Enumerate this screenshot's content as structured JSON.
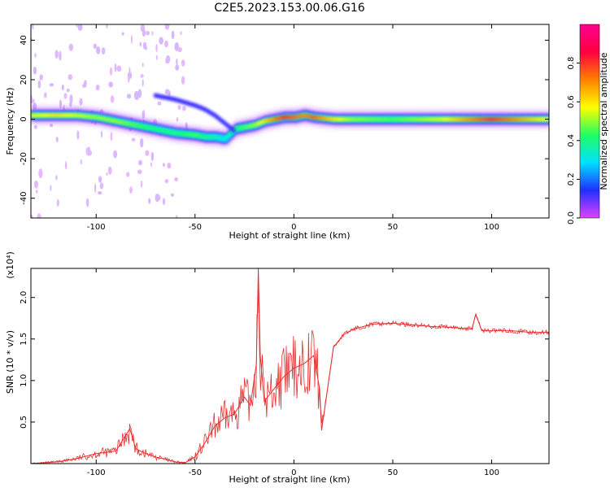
{
  "figure_title": "C2E5.2023.153.00.06.G16",
  "colors": {
    "snr_line": "#e83030",
    "panel_background": "#ffffff",
    "colorbar_stops": [
      "#e040ff",
      "#2030ff",
      "#00e0ff",
      "#20ff60",
      "#ffff00",
      "#ff8000",
      "#ff0040",
      "#ff0090"
    ]
  },
  "chart_data": [
    {
      "type": "heatmap",
      "title": "",
      "xlabel": "Height of straight line (km)",
      "ylabel": "Frequency (Hz)",
      "xlim": [
        -133,
        129
      ],
      "ylim": [
        -50,
        48
      ],
      "xticks": [
        "-100",
        "-50",
        "0",
        "50",
        "100"
      ],
      "xtick_values": [
        -100,
        -50,
        0,
        50,
        100
      ],
      "yticks": [
        "-40",
        "-20",
        "0",
        "20",
        "40"
      ],
      "ytick_values": [
        -40,
        -20,
        0,
        20,
        40
      ],
      "colorbar": {
        "label": "Normalized spectral amplitude",
        "range": [
          0,
          1
        ],
        "ticks": [
          "0.0",
          "0.2",
          "0.4",
          "0.6",
          "0.8"
        ],
        "tick_values": [
          0.0,
          0.2,
          0.4,
          0.6,
          0.8
        ]
      },
      "ridge": {
        "description": "dominant frequency ridge versus height",
        "x": [
          -130,
          -120,
          -110,
          -100,
          -90,
          -80,
          -70,
          -60,
          -50,
          -45,
          -40,
          -35,
          -30,
          -25,
          -20,
          -15,
          -10,
          -5,
          0,
          5,
          10,
          20,
          30,
          50,
          75,
          100,
          129
        ],
        "frequency": [
          2,
          2,
          2,
          1,
          -1,
          -3,
          -5,
          -7,
          -8,
          -9,
          -9,
          -10,
          -5,
          -4,
          -3,
          -1,
          0,
          1,
          1,
          2,
          1,
          0,
          0,
          0,
          0,
          0,
          0
        ],
        "amplitude": [
          0.55,
          0.6,
          0.55,
          0.5,
          0.5,
          0.45,
          0.4,
          0.4,
          0.45,
          0.4,
          0.35,
          0.3,
          0.4,
          0.45,
          0.5,
          0.6,
          0.7,
          0.8,
          0.75,
          0.7,
          0.75,
          0.6,
          0.5,
          0.45,
          0.55,
          0.8,
          0.55
        ]
      },
      "secondary_branch": {
        "x": [
          -70,
          -60,
          -50,
          -45,
          -40,
          -35,
          -30
        ],
        "frequency": [
          12,
          10,
          7,
          5,
          2,
          -2,
          -6
        ]
      }
    },
    {
      "type": "line",
      "title": "",
      "xlabel": "Height of straight line (km)",
      "ylabel": "SNR (10 * v/v)",
      "scale_label": "(x10⁴)",
      "xlim": [
        -133,
        129
      ],
      "ylim": [
        0,
        2.35
      ],
      "xticks": [
        "-100",
        "-50",
        "0",
        "50",
        "100"
      ],
      "xtick_values": [
        -100,
        -50,
        0,
        50,
        100
      ],
      "yticks": [
        "0.5",
        "1.0",
        "1.5",
        "2.0"
      ],
      "ytick_values": [
        0.5,
        1.0,
        1.5,
        2.0
      ],
      "series": [
        {
          "name": "SNR",
          "x": [
            -133,
            -120,
            -110,
            -100,
            -90,
            -83,
            -80,
            -75,
            -70,
            -60,
            -55,
            -50,
            -45,
            -40,
            -35,
            -30,
            -25,
            -22,
            -19,
            -18,
            -17,
            -15,
            -10,
            -5,
            0,
            5,
            10,
            13,
            14,
            20,
            25,
            30,
            40,
            50,
            60,
            70,
            80,
            90,
            92,
            95,
            100,
            110,
            120,
            129
          ],
          "y": [
            0.0,
            0.02,
            0.06,
            0.12,
            0.15,
            0.42,
            0.18,
            0.12,
            0.08,
            0.02,
            0.01,
            0.08,
            0.25,
            0.45,
            0.55,
            0.6,
            0.8,
            0.7,
            1.2,
            2.35,
            1.3,
            0.75,
            0.9,
            1.05,
            1.15,
            1.2,
            1.3,
            0.9,
            0.4,
            1.4,
            1.55,
            1.62,
            1.68,
            1.69,
            1.67,
            1.65,
            1.64,
            1.62,
            1.8,
            1.6,
            1.6,
            1.6,
            1.58,
            1.58
          ]
        }
      ]
    }
  ]
}
